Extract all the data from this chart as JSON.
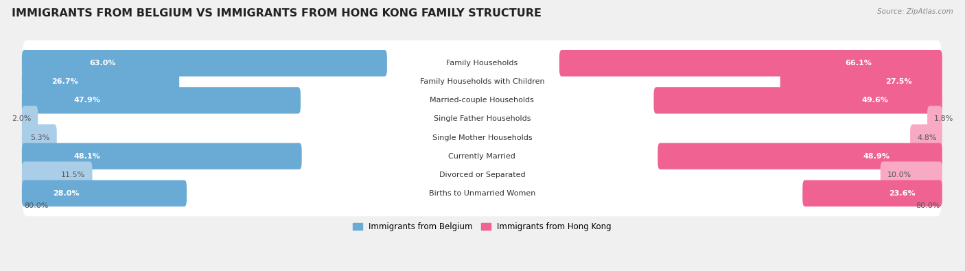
{
  "title": "IMMIGRANTS FROM BELGIUM VS IMMIGRANTS FROM HONG KONG FAMILY STRUCTURE",
  "source": "Source: ZipAtlas.com",
  "categories": [
    "Family Households",
    "Family Households with Children",
    "Married-couple Households",
    "Single Father Households",
    "Single Mother Households",
    "Currently Married",
    "Divorced or Separated",
    "Births to Unmarried Women"
  ],
  "belgium_values": [
    63.0,
    26.7,
    47.9,
    2.0,
    5.3,
    48.1,
    11.5,
    28.0
  ],
  "hongkong_values": [
    66.1,
    27.5,
    49.6,
    1.8,
    4.8,
    48.9,
    10.0,
    23.6
  ],
  "belgium_color_large": "#6aabd6",
  "belgium_color_small": "#aacde8",
  "hongkong_color_large": "#f06292",
  "hongkong_color_small": "#f8aac5",
  "belgium_label": "Immigrants from Belgium",
  "hongkong_label": "Immigrants from Hong Kong",
  "max_value": 80.0,
  "background_color": "#f0f0f0",
  "row_bg_color": "#e8e8e8",
  "title_fontsize": 11.5,
  "label_fontsize": 8,
  "value_fontsize": 8,
  "axis_label_left": "80.0%",
  "axis_label_right": "80.0%",
  "large_threshold": 15
}
